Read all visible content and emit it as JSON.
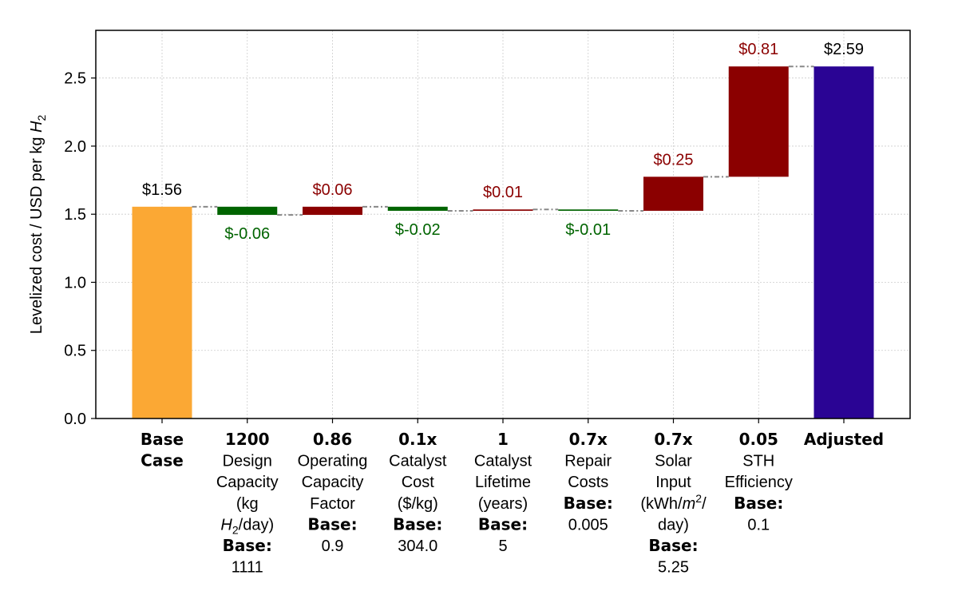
{
  "chart_data": {
    "type": "bar",
    "subtype": "waterfall",
    "title": "",
    "xlabel": "",
    "ylabel": "Levelized cost / USD per kg ",
    "ylabel_math": "H",
    "ylabel_sub": "2",
    "ylim": [
      0,
      2.85
    ],
    "yticks": [
      0.0,
      0.5,
      1.0,
      1.5,
      2.0,
      2.5
    ],
    "ytick_labels": [
      "0.0",
      "0.5",
      "1.0",
      "1.5",
      "2.0",
      "2.5"
    ],
    "grid": true,
    "colors": {
      "base": "#FBA834",
      "decrease": "#006400",
      "increase": "#8B0000",
      "adjusted": "#2A0494",
      "connector": "#888888",
      "grid": "#cccccc"
    },
    "bars": [
      {
        "kind": "base",
        "start": 0,
        "end": 1.555,
        "label": "$1.56",
        "category": [
          {
            "t": "Base",
            "b": true
          },
          {
            "t": "Case",
            "b": true
          }
        ]
      },
      {
        "kind": "decrease",
        "start": 1.555,
        "end": 1.495,
        "label": "$-0.06",
        "category": [
          {
            "t": "1200",
            "b": true
          },
          {
            "t": "Design"
          },
          {
            "t": "Capacity"
          },
          {
            "t": "(kg"
          },
          {
            "h2day": true,
            "t": "/day)"
          },
          {
            "t": "Base:",
            "b": true
          },
          {
            "t": "1111"
          }
        ]
      },
      {
        "kind": "increase",
        "start": 1.495,
        "end": 1.555,
        "label": "$0.06",
        "category": [
          {
            "t": "0.86",
            "b": true
          },
          {
            "t": "Operating"
          },
          {
            "t": "Capacity"
          },
          {
            "t": "Factor"
          },
          {
            "t": "Base:",
            "b": true
          },
          {
            "t": "0.9"
          }
        ]
      },
      {
        "kind": "decrease",
        "start": 1.555,
        "end": 1.525,
        "label": "$-0.02",
        "category": [
          {
            "t": "0.1x",
            "b": true
          },
          {
            "t": "Catalyst"
          },
          {
            "t": "Cost"
          },
          {
            "t": "($/kg)"
          },
          {
            "t": "Base:",
            "b": true
          },
          {
            "t": "304.0"
          }
        ]
      },
      {
        "kind": "increase",
        "start": 1.525,
        "end": 1.535,
        "label": "$0.01",
        "category": [
          {
            "t": "1",
            "b": true
          },
          {
            "t": "Catalyst"
          },
          {
            "t": "Lifetime"
          },
          {
            "t": "(years)"
          },
          {
            "t": "Base:",
            "b": true
          },
          {
            "t": "5"
          }
        ]
      },
      {
        "kind": "decrease",
        "start": 1.535,
        "end": 1.525,
        "label": "$-0.01",
        "category": [
          {
            "t": "0.7x",
            "b": true
          },
          {
            "t": "Repair"
          },
          {
            "t": "Costs"
          },
          {
            "t": "Base:",
            "b": true
          },
          {
            "t": "0.005"
          }
        ]
      },
      {
        "kind": "increase",
        "start": 1.525,
        "end": 1.775,
        "label": "$0.25",
        "category": [
          {
            "t": "0.7x",
            "b": true
          },
          {
            "t": "Solar"
          },
          {
            "t": "Input"
          },
          {
            "m2": true,
            "t": "(kWh/",
            "t2": "/"
          },
          {
            "t": "day)"
          },
          {
            "t": "Base:",
            "b": true
          },
          {
            "t": "5.25"
          }
        ]
      },
      {
        "kind": "increase",
        "start": 1.775,
        "end": 2.585,
        "label": "$0.81",
        "category": [
          {
            "t": "0.05",
            "b": true
          },
          {
            "t": "STH"
          },
          {
            "t": "Efficiency"
          },
          {
            "t": "Base:",
            "b": true
          },
          {
            "t": "0.1"
          }
        ]
      },
      {
        "kind": "adjusted",
        "start": 0,
        "end": 2.585,
        "label": "$2.59",
        "category": [
          {
            "t": "Adjusted",
            "b": true
          }
        ]
      }
    ]
  }
}
